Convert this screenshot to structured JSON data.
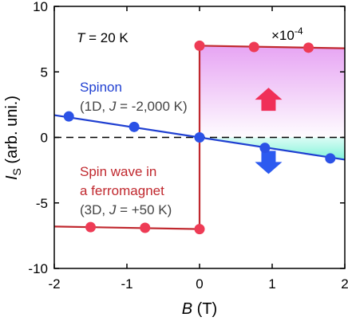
{
  "chart_data": {
    "type": "line",
    "title": "",
    "xlabel_main": "B",
    "xlabel_unit": " (T)",
    "ylabel_main": "I",
    "ylabel_sub": "S",
    "ylabel_unit": " (arb. uni.)",
    "xlim": [
      -2,
      2
    ],
    "ylim": [
      -10,
      10
    ],
    "x_ticks": [
      -2,
      -1,
      0,
      1,
      2
    ],
    "y_ticks": [
      -10,
      -5,
      0,
      5,
      10
    ],
    "x_tick_labels": [
      "-2",
      "-1",
      "0",
      "1",
      "2"
    ],
    "y_tick_labels": [
      "-10",
      "-5",
      "0",
      "5",
      "10"
    ],
    "grid": false,
    "series": [
      {
        "key": "spinon",
        "name_line1": "Spinon",
        "name_line2": "(1D, J = -2,000 K)",
        "color": "#1f3fd1",
        "marker_color": "#2b52e6",
        "line": [
          [
            -2,
            1.7
          ],
          [
            2,
            -1.7
          ]
        ],
        "x": [
          -1.8,
          -0.9,
          0,
          0.9,
          1.8
        ],
        "y": [
          1.6,
          0.8,
          0,
          -0.8,
          -1.6
        ]
      },
      {
        "key": "spin_wave",
        "name_line1": "Spin wave in",
        "name_line2": "a ferromagnet",
        "name_line3": "(3D, J = +50 K)",
        "color": "#c0282e",
        "marker_color": "#ee3b55",
        "line": [
          [
            -2,
            -6.8
          ],
          [
            0,
            -7.0
          ],
          [
            0,
            7.0
          ],
          [
            2,
            6.8
          ]
        ],
        "x": [
          -1.5,
          -0.75,
          0,
          0,
          0.75,
          1.5
        ],
        "y": [
          -6.85,
          -6.9,
          -7.0,
          7.0,
          6.9,
          6.85
        ]
      }
    ],
    "annotations": {
      "temperature": "T = 20 K",
      "scale_factor": "×10",
      "scale_exponent": "-4"
    },
    "colors": {
      "pink_fill_top": "#e49af2",
      "cyan_fill": "#73f2d6",
      "arrow_up": "#f02f58",
      "arrow_down": "#2c5af0",
      "zero_line": "#000000"
    }
  }
}
